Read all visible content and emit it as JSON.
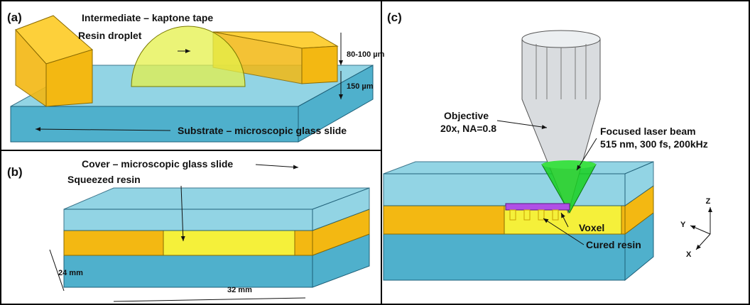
{
  "panels": [
    {
      "label": "(a)",
      "annotations": [
        "Intermediate – kaptone tape",
        "Resin droplet",
        "80-100  µm",
        "150 µm",
        "Substrate – microscopic glass slide"
      ]
    },
    {
      "label": "(b)",
      "annotations": [
        "Cover – microscopic glass slide",
        "Squeezed resin",
        "24 mm",
        "32 mm"
      ]
    },
    {
      "label": "(c)",
      "annotations": [
        "Objective",
        "20x, NA=0.8",
        "Focused laser beam",
        "515 nm, 300 fs, 200kHz",
        "Voxel",
        "Cured resin",
        "Z",
        "Y",
        "X"
      ]
    }
  ]
}
